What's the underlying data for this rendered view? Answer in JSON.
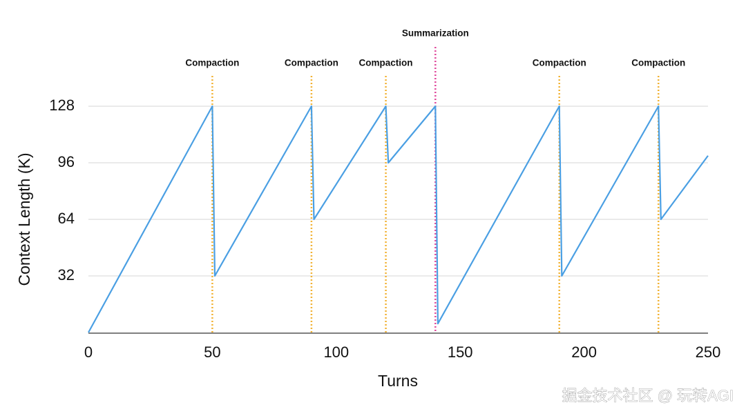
{
  "chart_data": {
    "type": "line",
    "x_label": "Turns",
    "y_label": "Context Length (K)",
    "x": [
      0,
      50,
      51,
      90,
      91,
      120,
      121,
      140,
      141,
      190,
      191,
      230,
      231,
      250
    ],
    "values": [
      0,
      128,
      32,
      128,
      64,
      128,
      96,
      128,
      5,
      128,
      32,
      128,
      64,
      100
    ],
    "color": "#4a9fe3",
    "xlim": [
      0,
      250
    ],
    "xticks": [
      0,
      50,
      100,
      150,
      200,
      250
    ],
    "ylim": [
      0,
      128
    ],
    "yticks": [
      32,
      64,
      96,
      128
    ],
    "grid": true,
    "compactions": {
      "label": "Compaction",
      "color": "#f2b233",
      "x": [
        50,
        90,
        120,
        190,
        230
      ]
    },
    "summarizations": {
      "label": "Summarization",
      "color": "#e0489b",
      "x": [
        140
      ]
    }
  },
  "watermark": "掘金技术社区 @ 玩转AGI"
}
